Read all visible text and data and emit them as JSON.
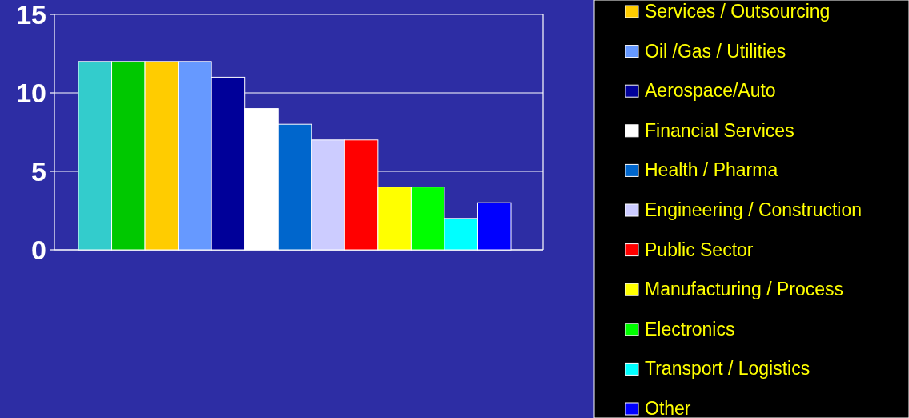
{
  "chart_data": {
    "type": "bar",
    "categories": [
      null
    ],
    "series": [
      {
        "color": "#33cccc",
        "values": [
          12
        ]
      },
      {
        "color": "#00c800",
        "values": [
          12
        ]
      },
      {
        "name": "Services / Outsourcing",
        "color": "#ffcc00",
        "values": [
          12
        ]
      },
      {
        "name": "Oil /Gas / Utilities",
        "color": "#6699ff",
        "values": [
          12
        ]
      },
      {
        "name": "Aerospace/Auto",
        "color": "#000099",
        "values": [
          11
        ]
      },
      {
        "name": "Financial Services",
        "color": "#ffffff",
        "values": [
          9
        ]
      },
      {
        "name": "Health / Pharma",
        "color": "#0066cc",
        "values": [
          8
        ]
      },
      {
        "name": "Engineering / Construction",
        "color": "#ccccff",
        "values": [
          7
        ]
      },
      {
        "name": "Public Sector",
        "color": "#ff0000",
        "values": [
          7
        ]
      },
      {
        "name": "Manufacturing / Process",
        "color": "#ffff00",
        "values": [
          4
        ]
      },
      {
        "name": "Electronics",
        "color": "#00ff00",
        "values": [
          4
        ]
      },
      {
        "name": "Transport / Logistics",
        "color": "#00ffff",
        "values": [
          2
        ]
      },
      {
        "name": "Other",
        "color": "#0000ff",
        "values": [
          3
        ]
      }
    ],
    "ylim": [
      0,
      15
    ],
    "yticks": [
      0,
      5,
      10,
      15
    ],
    "grid": "y",
    "legend": "right",
    "tick_labels": "y"
  }
}
